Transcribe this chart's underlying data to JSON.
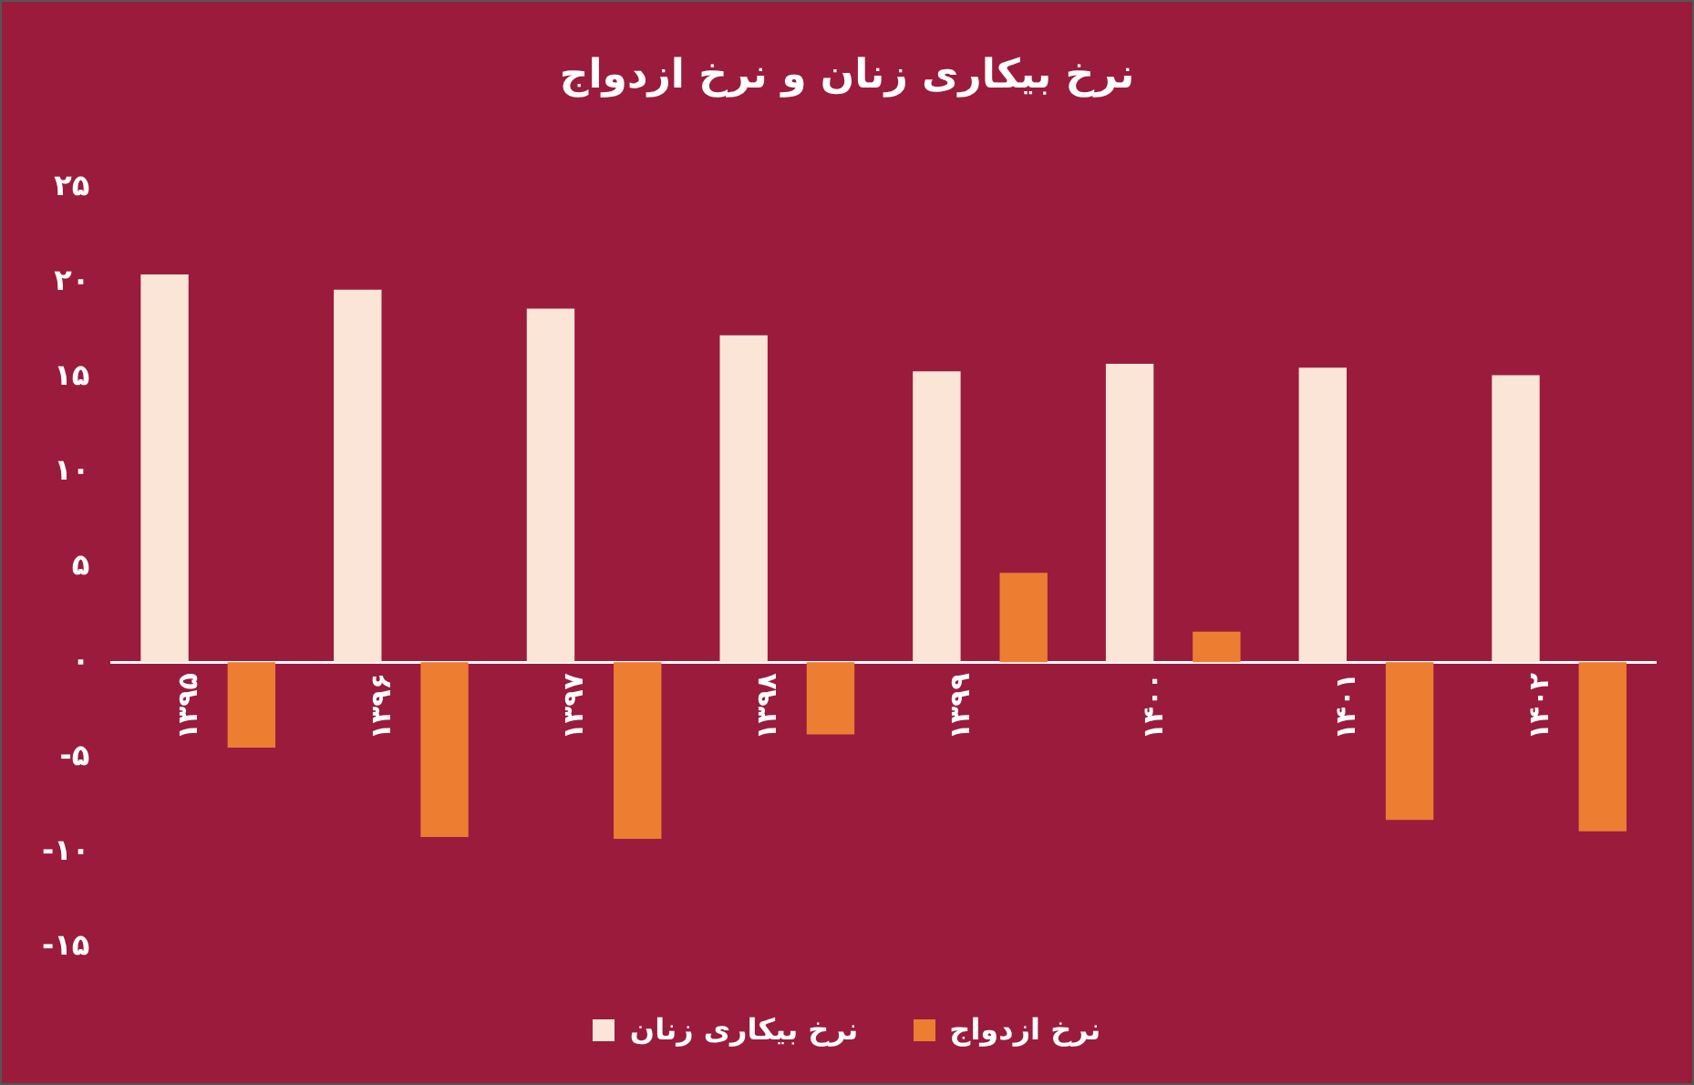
{
  "chart_data": {
    "type": "bar",
    "title": "نرخ بیکاری زنان و نرخ ازدواج",
    "categories": [
      "۱۳۹۵",
      "۱۳۹۶",
      "۱۳۹۷",
      "۱۳۹۸",
      "۱۳۹۹",
      "۱۴۰۰",
      "۱۴۰۱",
      "۱۴۰۲"
    ],
    "series": [
      {
        "name": "نرخ بیکاری زنان",
        "color": "#fbe5d6",
        "values": [
          20.4,
          19.6,
          18.6,
          17.2,
          15.3,
          15.7,
          15.5,
          15.1
        ]
      },
      {
        "name": "نرخ ازدواج",
        "color": "#ed7d31",
        "values": [
          -4.5,
          -9.2,
          -9.3,
          -3.8,
          4.7,
          1.6,
          -8.3,
          -8.9
        ]
      }
    ],
    "ylim": [
      -15,
      25
    ],
    "yticks": [
      {
        "value": 25,
        "label": "۲۵"
      },
      {
        "value": 20,
        "label": "۲۰"
      },
      {
        "value": 15,
        "label": "۱۵"
      },
      {
        "value": 10,
        "label": "۱۰"
      },
      {
        "value": 5,
        "label": "۵"
      },
      {
        "value": 0,
        "label": "۰"
      },
      {
        "value": -5,
        "label": "-۵"
      },
      {
        "value": -10,
        "label": "-۱۰"
      },
      {
        "value": -15,
        "label": "-۱۵"
      }
    ],
    "grid": false,
    "legend": "bottom"
  }
}
